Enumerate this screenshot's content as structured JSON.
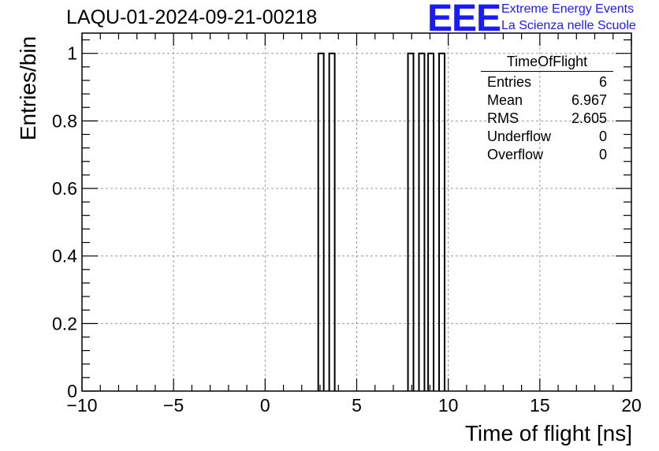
{
  "title": "LAQU-01-2024-09-21-00218",
  "logo": {
    "mark": "EEE",
    "line1": "Extreme Energy Events",
    "line2": "La Scienza nelle Scuole",
    "color": "#1a1aff"
  },
  "stats": {
    "name": "TimeOfFlight",
    "rows": [
      {
        "label": "Entries",
        "value": "6"
      },
      {
        "label": "Mean",
        "value": "6.967"
      },
      {
        "label": "RMS",
        "value": "2.605"
      },
      {
        "label": "Underflow",
        "value": "0"
      },
      {
        "label": "Overflow",
        "value": "0"
      }
    ]
  },
  "chart_data": {
    "type": "bar",
    "title": "LAQU-01-2024-09-21-00218",
    "xlabel": "Time of flight [ns]",
    "ylabel": "Entries/bin",
    "xlim": [
      -10,
      20
    ],
    "ylim": [
      0,
      1
    ],
    "grid": true,
    "x_ticks": [
      -10,
      -5,
      0,
      5,
      10,
      15,
      20
    ],
    "x_tick_labels": [
      "−10",
      "−5",
      "0",
      "5",
      "10",
      "15",
      "20"
    ],
    "y_ticks": [
      0,
      0.2,
      0.4,
      0.6,
      0.8,
      1
    ],
    "y_tick_labels": [
      "0",
      "0.2",
      "0.4",
      "0.6",
      "0.8",
      "1"
    ],
    "bins": [
      {
        "low": 2.9,
        "high": 3.2,
        "count": 1
      },
      {
        "low": 3.5,
        "high": 3.8,
        "count": 1
      },
      {
        "low": 7.8,
        "high": 8.1,
        "count": 1
      },
      {
        "low": 8.4,
        "high": 8.7,
        "count": 1
      },
      {
        "low": 8.9,
        "high": 9.2,
        "count": 1
      },
      {
        "low": 9.5,
        "high": 9.8,
        "count": 1
      }
    ]
  }
}
